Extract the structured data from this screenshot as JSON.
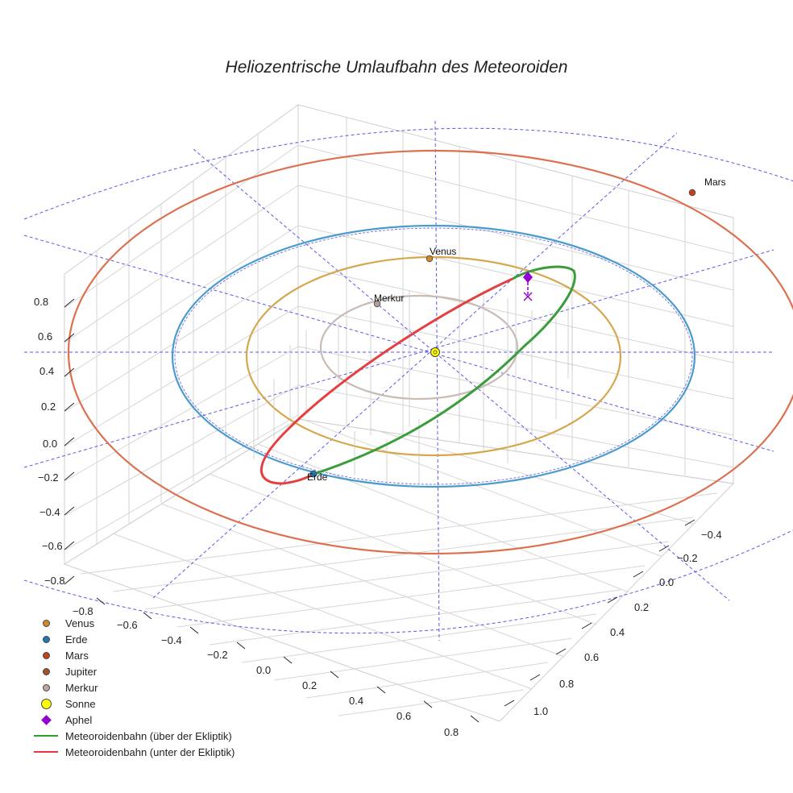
{
  "chart_data": {
    "type": "3d-orbit-plot",
    "title": "Heliozentrische Umlaufbahn des Meteoroiden",
    "axes": {
      "z_ticks": [
        "0.8",
        "0.6",
        "0.4",
        "0.2",
        "0.0",
        "−0.2",
        "−0.4",
        "−0.6",
        "−0.8"
      ],
      "x_ticks": [
        "−0.8",
        "−0.6",
        "−0.4",
        "−0.2",
        "0.0",
        "0.2",
        "0.4",
        "0.6",
        "0.8"
      ],
      "y_ticks": [
        "−0.4",
        "−0.2",
        "0.0",
        "0.2",
        "0.4",
        "0.6",
        "0.8",
        "1.0"
      ]
    },
    "planets": [
      {
        "name": "Merkur",
        "orbit_radius_au": 0.39,
        "label": "Merkur"
      },
      {
        "name": "Venus",
        "orbit_radius_au": 0.72,
        "label": "Venus"
      },
      {
        "name": "Erde",
        "orbit_radius_au": 1.0,
        "label": "Erde"
      },
      {
        "name": "Mars",
        "orbit_radius_au": 1.52,
        "label": "Mars"
      }
    ],
    "meteoroid": {
      "perihelion_au": 0.93,
      "aphelion_au": 1.1,
      "segments": [
        "über der Ekliptik",
        "unter der Ekliptik"
      ]
    },
    "legend": [
      {
        "label": "Venus",
        "color": "#d08a2c",
        "symbol": "dot"
      },
      {
        "label": "Erde",
        "color": "#1f77b4",
        "symbol": "dot"
      },
      {
        "label": "Mars",
        "color": "#c4421a",
        "symbol": "dot"
      },
      {
        "label": "Jupiter",
        "color": "#a0522d",
        "symbol": "dot"
      },
      {
        "label": "Merkur",
        "color": "#c0a8a0",
        "symbol": "dot"
      },
      {
        "label": "Sonne",
        "color": "#ffff00",
        "symbol": "bigdot"
      },
      {
        "label": "Aphel",
        "color": "#9400d3",
        "symbol": "diamond"
      },
      {
        "label": "Meteoroidenbahn (über der Ekliptik)",
        "color": "#2ca02c",
        "symbol": "line"
      },
      {
        "label": "Meteoroidenbahn (unter der Ekliptik)",
        "color": "#e8383d",
        "symbol": "line"
      }
    ]
  }
}
